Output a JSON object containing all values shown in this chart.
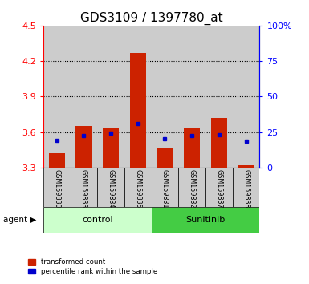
{
  "title": "GDS3109 / 1397780_at",
  "samples": [
    "GSM159830",
    "GSM159833",
    "GSM159834",
    "GSM159835",
    "GSM159831",
    "GSM159832",
    "GSM159837",
    "GSM159838"
  ],
  "groups": [
    "control",
    "control",
    "control",
    "control",
    "Sunitinib",
    "Sunitinib",
    "Sunitinib",
    "Sunitinib"
  ],
  "bar_bottoms": [
    3.3,
    3.3,
    3.3,
    3.3,
    3.3,
    3.3,
    3.3,
    3.3
  ],
  "bar_tops": [
    3.42,
    3.65,
    3.63,
    4.27,
    3.46,
    3.64,
    3.72,
    3.32
  ],
  "blue_dot_y": [
    3.53,
    3.57,
    3.59,
    3.67,
    3.54,
    3.57,
    3.58,
    3.52
  ],
  "ylim_left": [
    3.3,
    4.5
  ],
  "ylim_right": [
    0,
    100
  ],
  "yticks_left": [
    3.3,
    3.6,
    3.9,
    4.2,
    4.5
  ],
  "yticks_right": [
    0,
    25,
    50,
    75,
    100
  ],
  "ytick_labels_left": [
    "3.3",
    "3.6",
    "3.9",
    "4.2",
    "4.5"
  ],
  "ytick_labels_right": [
    "0",
    "25",
    "50",
    "75",
    "100%"
  ],
  "bar_color": "#cc2200",
  "dot_color": "#0000cc",
  "control_bg": "#ccffcc",
  "sunitinib_bg": "#44cc44",
  "sample_bg": "#cccccc",
  "agent_label": "agent",
  "control_label": "control",
  "sunitinib_label": "Sunitinib",
  "legend_red": "transformed count",
  "legend_blue": "percentile rank within the sample",
  "grid_yticks": [
    3.6,
    3.9,
    4.2
  ],
  "title_fontsize": 11,
  "tick_fontsize": 8,
  "label_fontsize": 8
}
